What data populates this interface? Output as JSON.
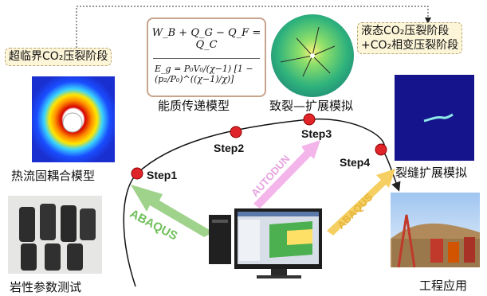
{
  "labels": {
    "thermal_coupling": "热流固耦合模型",
    "rock_params": "岩性参数测试",
    "energy_model": "能质传递模型",
    "fracture_sim": "致裂—扩展模拟",
    "crack_sim": "裂缝扩展模拟",
    "engineering": "工程应用"
  },
  "tags": {
    "supercritical": "超临界CO₂压裂阶段",
    "liquid_line1": "液态CO₂压裂阶段",
    "liquid_line2": "+CO₂相变压裂阶段"
  },
  "steps": [
    "Step1",
    "Step2",
    "Step3",
    "Step4"
  ],
  "arrows": {
    "left": "ABAQUS",
    "middle": "AUTODUN",
    "right": "ABAQUS"
  },
  "formulas": {
    "balance": "W_B + Q_G − Q_F = Q_C",
    "energy": "E_g = P₀V₀/(χ−1) [1 − (p₂/P₀)^((χ−1)/χ)]"
  },
  "colors": {
    "step_dot": "#e0252a",
    "arrow_green": "#9fd28a",
    "arrow_pink": "#f4b6ea",
    "arrow_yellow": "#f5cf62",
    "tag_bg": "#fdf5d8"
  }
}
